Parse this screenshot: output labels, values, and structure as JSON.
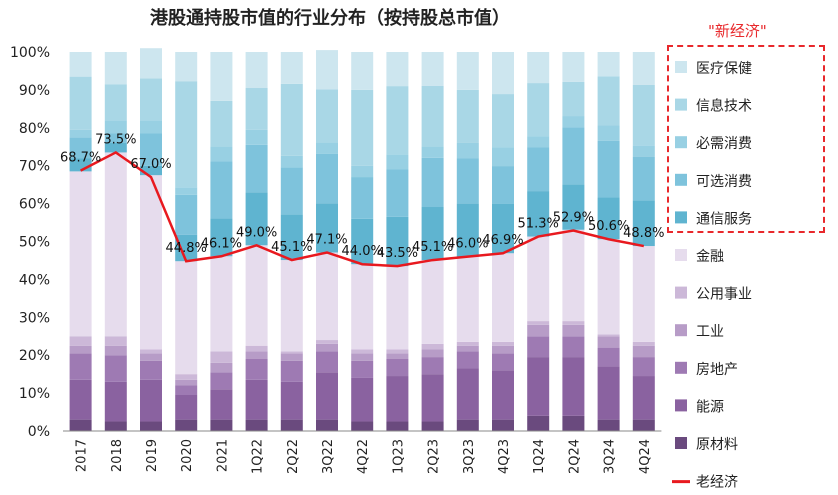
{
  "chart_data": {
    "type": "stacked_bar_with_line",
    "title": "港股通持股市值的行业分布（按持股总市值）",
    "categories": [
      "2017",
      "2018",
      "2019",
      "2020",
      "2021",
      "1Q22",
      "2Q22",
      "3Q22",
      "4Q22",
      "1Q23",
      "2Q23",
      "3Q23",
      "4Q23",
      "1Q24",
      "2Q24",
      "3Q24",
      "4Q24"
    ],
    "ylim": [
      0,
      100
    ],
    "yticks": [
      "0%",
      "10%",
      "20%",
      "30%",
      "40%",
      "50%",
      "60%",
      "70%",
      "80%",
      "90%",
      "100%"
    ],
    "new_economy_label": "\"新经济\"",
    "series": [
      {
        "name": "原材料",
        "color": "#6a4a7e",
        "values": [
          3,
          2.5,
          2.5,
          3,
          3,
          3,
          3,
          3,
          2.5,
          2.5,
          2.5,
          3,
          3,
          4,
          4,
          3,
          3
        ]
      },
      {
        "name": "能源",
        "color": "#8a62a0",
        "values": [
          10.5,
          10.5,
          11,
          6.5,
          8,
          10.5,
          10,
          12.5,
          11.5,
          12,
          12.5,
          13.5,
          13,
          15.5,
          15.5,
          14,
          11.5
        ]
      },
      {
        "name": "房地产",
        "color": "#9e7ab3",
        "values": [
          7,
          7,
          5,
          2.5,
          4.5,
          5.5,
          5.5,
          5.5,
          4.5,
          4.5,
          4.5,
          4.5,
          4.5,
          5.5,
          5.5,
          5,
          5
        ]
      },
      {
        "name": "工业",
        "color": "#b79cc7",
        "values": [
          2,
          2.5,
          2,
          1.5,
          2.5,
          2,
          2,
          2,
          2,
          1.5,
          2,
          1.5,
          2,
          3,
          3,
          3,
          3
        ]
      },
      {
        "name": "公用事业",
        "color": "#ccb8d8",
        "values": [
          2.5,
          2.5,
          1,
          1.5,
          3,
          1.5,
          0.5,
          1,
          1,
          1,
          1.5,
          1,
          1,
          1,
          1,
          0.5,
          1
        ]
      },
      {
        "name": "金融",
        "color": "#e6dced",
        "values": [
          43.5,
          48.5,
          46,
          29.8,
          25.1,
          26.5,
          24.1,
          23.1,
          22.5,
          22,
          22.1,
          22.5,
          23.4,
          22.3,
          24.1,
          25.1,
          25.3
        ]
      },
      {
        "name": "通信服务",
        "color": "#5fb4d0",
        "values": [
          3.5,
          2.5,
          2.5,
          7,
          10,
          14,
          12,
          13,
          12,
          13,
          14,
          14,
          13,
          12,
          12,
          11,
          12
        ]
      },
      {
        "name": "可选消费",
        "color": "#7ec3dc",
        "values": [
          5.5,
          2.5,
          8.5,
          10.5,
          15,
          12.5,
          12.5,
          13,
          11,
          12.5,
          13,
          12,
          10,
          11.5,
          15,
          15,
          11.5
        ]
      },
      {
        "name": "必需消费",
        "color": "#98d0e3",
        "values": [
          2,
          3.5,
          3.5,
          2,
          4,
          4,
          3,
          3,
          3,
          4,
          3,
          4,
          5,
          3,
          3,
          4,
          3
        ]
      },
      {
        "name": "信息技术",
        "color": "#a9d7e6",
        "values": [
          14,
          9.5,
          11,
          28,
          12,
          11,
          19,
          14,
          20,
          18,
          16,
          14,
          14,
          14,
          9,
          13,
          16
        ]
      },
      {
        "name": "医疗保健",
        "color": "#cde6ef",
        "values": [
          6.5,
          8.5,
          8,
          7.7,
          12.9,
          9.5,
          8.4,
          10.4,
          10,
          9,
          8.9,
          10,
          11.1,
          8.2,
          7.9,
          6.4,
          8.7
        ]
      }
    ],
    "line": {
      "name": "老经济",
      "color": "#e8191f",
      "values": [
        68.7,
        73.5,
        67.0,
        44.8,
        46.1,
        49.0,
        45.1,
        47.1,
        44.0,
        43.5,
        45.1,
        46.0,
        46.9,
        51.3,
        52.9,
        50.6,
        48.8
      ],
      "labels": [
        "68.7%",
        "73.5%",
        "67.0%",
        "44.8%",
        "46.1%",
        "49.0%",
        "45.1%",
        "47.1%",
        "44.0%",
        "43.5%",
        "45.1%",
        "46.0%",
        "46.9%",
        "51.3%",
        "52.9%",
        "50.6%",
        "48.8%"
      ]
    },
    "legend": [
      {
        "label": "医疗保健",
        "color": "#cde6ef",
        "kind": "box"
      },
      {
        "label": "信息技术",
        "color": "#a9d7e6",
        "kind": "box"
      },
      {
        "label": "必需消费",
        "color": "#98d0e3",
        "kind": "box"
      },
      {
        "label": "可选消费",
        "color": "#7ec3dc",
        "kind": "box"
      },
      {
        "label": "通信服务",
        "color": "#5fb4d0",
        "kind": "box"
      },
      {
        "label": "金融",
        "color": "#e6dced",
        "kind": "box"
      },
      {
        "label": "公用事业",
        "color": "#ccb8d8",
        "kind": "box"
      },
      {
        "label": "工业",
        "color": "#b79cc7",
        "kind": "box"
      },
      {
        "label": "房地产",
        "color": "#9e7ab3",
        "kind": "box"
      },
      {
        "label": "能源",
        "color": "#8a62a0",
        "kind": "box"
      },
      {
        "label": "原材料",
        "color": "#6a4a7e",
        "kind": "box"
      },
      {
        "label": "老经济",
        "color": "#e8191f",
        "kind": "line"
      }
    ]
  }
}
